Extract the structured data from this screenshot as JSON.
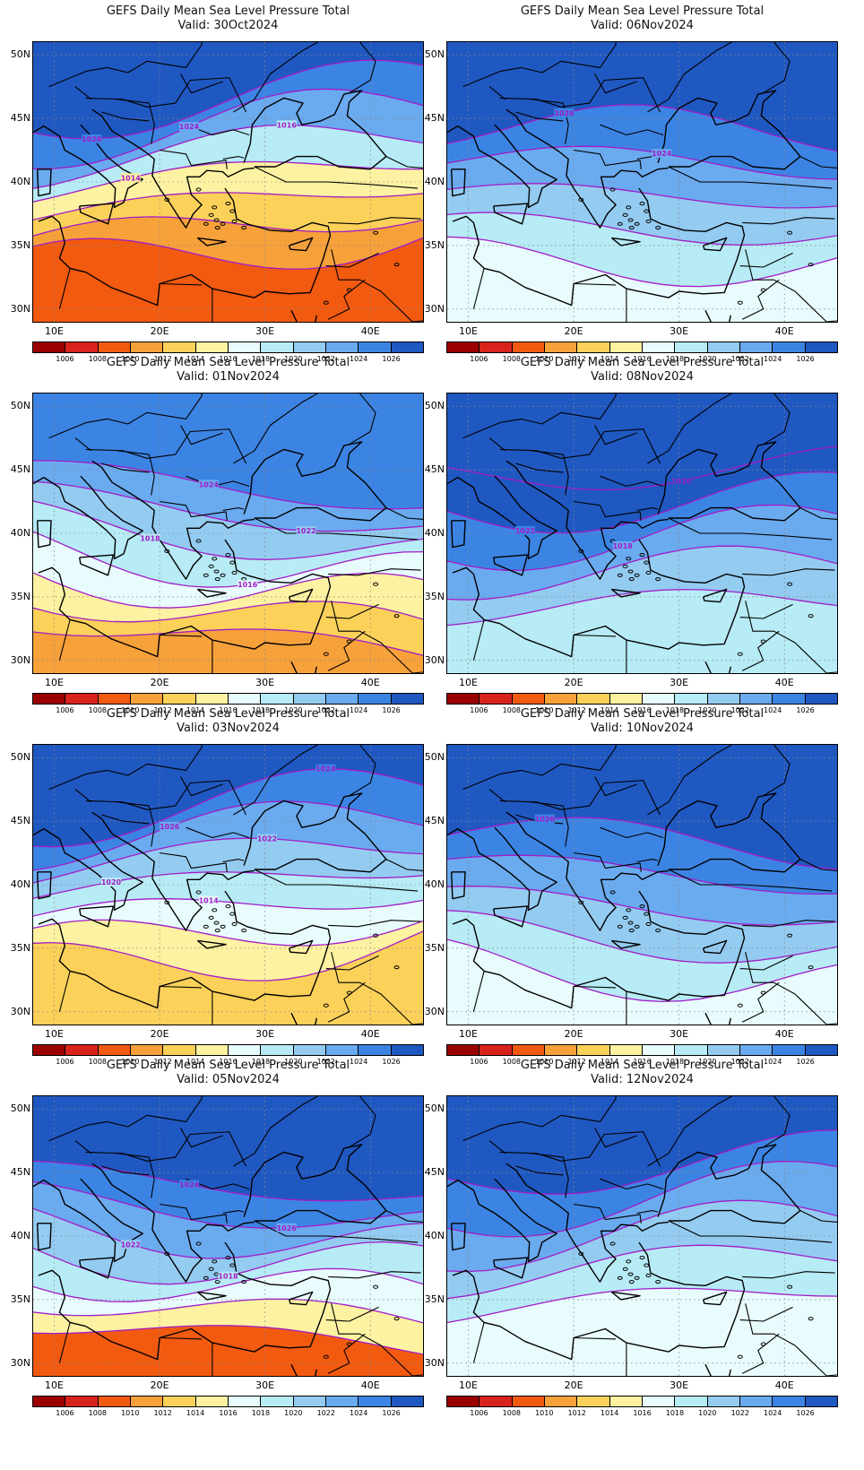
{
  "title_line1": "GEFS Daily Mean Sea Level Pressure Total",
  "valid_prefix": "Valid: ",
  "lat_labels": [
    "50N",
    "45N",
    "40N",
    "35N",
    "30N"
  ],
  "lon_labels": [
    "10E",
    "20E",
    "30E",
    "40E"
  ],
  "colorbar": {
    "labels": [
      "1006",
      "1008",
      "1010",
      "1012",
      "1014",
      "1016",
      "1018",
      "1020",
      "1022",
      "1024",
      "1026"
    ],
    "colors": [
      "#9a0000",
      "#d8231c",
      "#f25a10",
      "#f7a13a",
      "#fbd15a",
      "#fdf2a1",
      "#e8fbfd",
      "#b7ebf5",
      "#94cbf1",
      "#6aaaef",
      "#3c84e3",
      "#2058c2"
    ]
  },
  "panels": [
    {
      "valid": "30Oct2024",
      "band_colors": [
        "#2058c2",
        "#3c84e3",
        "#6aaaef",
        "#b7ebf5",
        "#fdf2a1",
        "#fbd15a",
        "#f7a13a",
        "#f25a10"
      ],
      "isobar_labels": [
        "1026",
        "1024",
        "1016",
        "1014"
      ]
    },
    {
      "valid": "06Nov2024",
      "band_colors": [
        "#2058c2",
        "#3c84e3",
        "#6aaaef",
        "#94cbf1",
        "#b7ebf5",
        "#e8fbfd"
      ],
      "isobar_labels": [
        "1026",
        "1024"
      ]
    },
    {
      "valid": "01Nov2024",
      "band_colors": [
        "#3c84e3",
        "#6aaaef",
        "#94cbf1",
        "#b7ebf5",
        "#e8fbfd",
        "#fdf2a1",
        "#fbd15a",
        "#f7a13a"
      ],
      "isobar_labels": [
        "1024",
        "1022",
        "1018",
        "1016"
      ]
    },
    {
      "valid": "08Nov2024",
      "band_colors": [
        "#2058c2",
        "#2058c2",
        "#3c84e3",
        "#6aaaef",
        "#94cbf1",
        "#b7ebf5"
      ],
      "isobar_labels": [
        "1020",
        "1022",
        "1018"
      ]
    },
    {
      "valid": "03Nov2024",
      "band_colors": [
        "#2058c2",
        "#3c84e3",
        "#6aaaef",
        "#94cbf1",
        "#b7ebf5",
        "#e8fbfd",
        "#fdf2a1",
        "#fbd15a"
      ],
      "isobar_labels": [
        "1024",
        "1026",
        "1022",
        "1020",
        "1014"
      ]
    },
    {
      "valid": "10Nov2024",
      "band_colors": [
        "#2058c2",
        "#3c84e3",
        "#6aaaef",
        "#94cbf1",
        "#b7ebf5",
        "#e8fbfd"
      ],
      "isobar_labels": [
        "1026"
      ]
    },
    {
      "valid": "05Nov2024",
      "band_colors": [
        "#2058c2",
        "#3c84e3",
        "#6aaaef",
        "#94cbf1",
        "#b7ebf5",
        "#e8fbfd",
        "#fdf2a1",
        "#f25a10"
      ],
      "isobar_labels": [
        "1024",
        "1026",
        "1022",
        "1018"
      ]
    },
    {
      "valid": "12Nov2024",
      "band_colors": [
        "#2058c2",
        "#3c84e3",
        "#6aaaef",
        "#94cbf1",
        "#b7ebf5",
        "#e8fbfd"
      ],
      "isobar_labels": []
    }
  ]
}
